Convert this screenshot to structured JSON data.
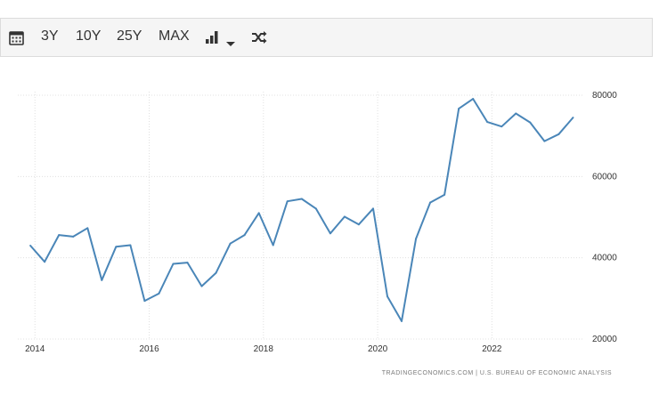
{
  "toolbar": {
    "calendar_icon": "calendar-icon",
    "ranges": [
      "3Y",
      "10Y",
      "25Y",
      "MAX"
    ],
    "chart_type_icon": "bar-chart-icon",
    "dropdown_icon": "caret-down-icon",
    "compare_icon": "shuffle-icon"
  },
  "source": "TRADINGECONOMICS.COM | U.S. BUREAU OF ECONOMIC ANALYSIS",
  "colors": {
    "line": "#4a86b8",
    "grid": "#e0e0e0",
    "toolbar_bg": "#f5f5f5"
  },
  "chart_data": {
    "type": "line",
    "title": "",
    "xlabel": "",
    "ylabel": "",
    "xlim": [
      2013.7,
      2023.6
    ],
    "ylim": [
      20000,
      80000
    ],
    "x_ticks": [
      2014,
      2016,
      2018,
      2020,
      2022
    ],
    "x_tick_labels": [
      "2014",
      "2016",
      "2018",
      "2020",
      "2022"
    ],
    "y_ticks": [
      20000,
      40000,
      60000,
      80000
    ],
    "y_tick_labels": [
      "20000",
      "40000",
      "60000",
      "80000"
    ],
    "grid": true,
    "y_axis_side": "right",
    "series": [
      {
        "name": "",
        "x": [
          2013.92,
          2014.17,
          2014.42,
          2014.67,
          2014.92,
          2015.17,
          2015.42,
          2015.67,
          2015.92,
          2016.17,
          2016.42,
          2016.67,
          2016.92,
          2017.17,
          2017.42,
          2017.67,
          2017.92,
          2018.17,
          2018.42,
          2018.67,
          2018.92,
          2019.17,
          2019.42,
          2019.67,
          2019.92,
          2020.17,
          2020.42,
          2020.67,
          2020.92,
          2021.17,
          2021.42,
          2021.67,
          2021.92,
          2022.17,
          2022.42,
          2022.67,
          2022.92,
          2023.17,
          2023.42
        ],
        "values": [
          43000,
          39000,
          45600,
          45200,
          47300,
          34500,
          42700,
          43100,
          29400,
          31200,
          38500,
          38800,
          33000,
          36300,
          43500,
          45600,
          51000,
          43100,
          53900,
          54500,
          52100,
          46000,
          50100,
          48200,
          52100,
          30500,
          24400,
          44700,
          53600,
          55500,
          76700,
          79100,
          73400,
          72300,
          75500,
          73300,
          68700,
          70400,
          74500
        ]
      }
    ]
  }
}
